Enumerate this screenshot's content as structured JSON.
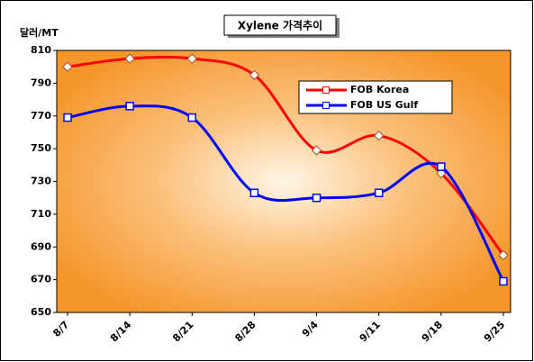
{
  "chart_data": {
    "type": "line",
    "title": "Xylene 가격추이",
    "y_label": "달러/MT",
    "categories": [
      "8/7",
      "8/14",
      "8/21",
      "8/28",
      "9/4",
      "9/11",
      "9/18",
      "9/25"
    ],
    "series": [
      {
        "name": "FOB Korea",
        "color": "#ff0000",
        "values": [
          800,
          805,
          805,
          795,
          749,
          758,
          735,
          685
        ]
      },
      {
        "name": "FOB US Gulf",
        "color": "#0000ff",
        "values": [
          769,
          776,
          769,
          723,
          720,
          723,
          739,
          669
        ]
      }
    ],
    "ylim": [
      650,
      810
    ],
    "yticks": [
      650,
      670,
      690,
      710,
      730,
      750,
      770,
      790,
      810
    ]
  }
}
